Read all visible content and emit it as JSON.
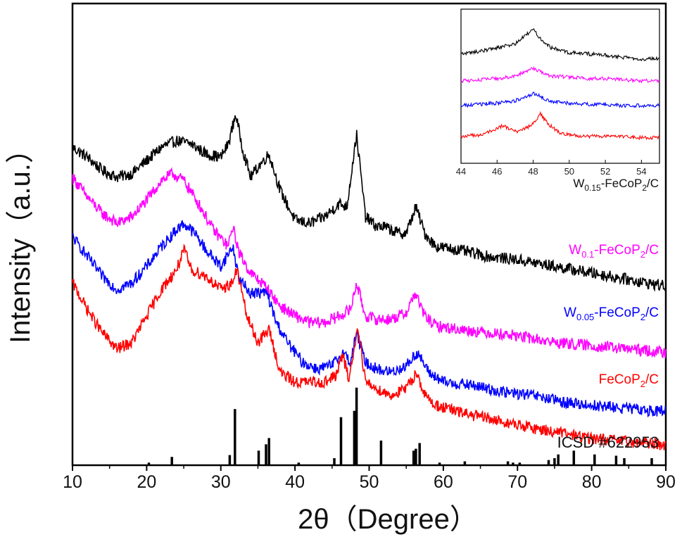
{
  "chart_data": [
    {
      "type": "line",
      "title": "",
      "xlabel": "2θ（Degree）",
      "ylabel": "Intensity（a.u.）",
      "xlim": [
        10,
        90
      ],
      "xticks": [
        10,
        20,
        30,
        40,
        50,
        60,
        70,
        80,
        90
      ],
      "yticks_shown": false,
      "grid": false,
      "series": [
        {
          "name": "W0.15-FeCoP2/C",
          "color": "#000000",
          "label_parts": {
            "base": "W",
            "sub1": "0.15",
            "mid": "-FeCoP",
            "sub2": "2",
            "tail": "/C"
          },
          "labeled_in": "inset",
          "x": [
            10,
            12,
            14,
            16,
            18,
            20,
            22,
            24,
            26,
            28,
            30,
            31,
            32,
            33,
            34,
            35,
            36.5,
            38,
            40,
            42,
            44,
            46,
            47,
            48.3,
            49.5,
            51,
            52,
            54,
            55,
            56.3,
            57.5,
            59,
            62,
            66,
            70,
            75,
            80,
            85,
            90
          ],
          "y": [
            0.81,
            0.78,
            0.74,
            0.72,
            0.73,
            0.77,
            0.81,
            0.83,
            0.82,
            0.79,
            0.78,
            0.82,
            0.91,
            0.8,
            0.72,
            0.75,
            0.79,
            0.68,
            0.59,
            0.58,
            0.6,
            0.64,
            0.63,
            0.85,
            0.6,
            0.57,
            0.57,
            0.55,
            0.55,
            0.63,
            0.55,
            0.51,
            0.5,
            0.48,
            0.47,
            0.45,
            0.43,
            0.41,
            0.39
          ]
        },
        {
          "name": "W0.1-FeCoP2/C",
          "color": "#ff00ff",
          "label_parts": {
            "base": "W",
            "sub1": "0.1",
            "mid": "-FeCoP",
            "sub2": "2",
            "tail": "/C"
          },
          "x": [
            10,
            12,
            14,
            16,
            18,
            20,
            22,
            23.5,
            25,
            27,
            29,
            31,
            31.6,
            32.5,
            34,
            36,
            38,
            40,
            42,
            44,
            46,
            47.5,
            48.3,
            49.5,
            51,
            53,
            55,
            56.2,
            57.5,
            59,
            62,
            66,
            70,
            75,
            80,
            85,
            90
          ],
          "y": [
            0.72,
            0.66,
            0.61,
            0.58,
            0.6,
            0.65,
            0.71,
            0.73,
            0.71,
            0.64,
            0.56,
            0.51,
            0.57,
            0.49,
            0.43,
            0.39,
            0.33,
            0.3,
            0.28,
            0.28,
            0.3,
            0.32,
            0.4,
            0.3,
            0.29,
            0.29,
            0.31,
            0.37,
            0.3,
            0.27,
            0.26,
            0.25,
            0.24,
            0.22,
            0.21,
            0.2,
            0.19
          ]
        },
        {
          "name": "W0.05-FeCoP2/C",
          "color": "#0000ff",
          "label_parts": {
            "base": "W",
            "sub1": "0.05",
            "mid": "-FeCoP",
            "sub2": "2",
            "tail": "/C"
          },
          "x": [
            10,
            12,
            14,
            16,
            18,
            20,
            22,
            24,
            25,
            26.5,
            28,
            30,
            31.6,
            32.5,
            34,
            36.2,
            37.5,
            39,
            41,
            43,
            45,
            46.5,
            47.5,
            48.3,
            49.5,
            51,
            53,
            55,
            56.5,
            58,
            60,
            64,
            68,
            72,
            76,
            80,
            85,
            90
          ],
          "y": [
            0.54,
            0.48,
            0.42,
            0.38,
            0.4,
            0.45,
            0.51,
            0.56,
            0.58,
            0.55,
            0.5,
            0.45,
            0.51,
            0.41,
            0.37,
            0.37,
            0.28,
            0.22,
            0.16,
            0.14,
            0.15,
            0.19,
            0.16,
            0.25,
            0.16,
            0.14,
            0.13,
            0.15,
            0.19,
            0.13,
            0.1,
            0.09,
            0.07,
            0.06,
            0.04,
            0.03,
            0.02,
            0.01
          ]
        },
        {
          "name": "FeCoP2/C",
          "color": "#ff0000",
          "label_parts": {
            "base": "FeCoP",
            "sub1": "2",
            "mid": "/C",
            "sub2": "",
            "tail": ""
          },
          "x": [
            10,
            12,
            14,
            16,
            18,
            20,
            22,
            24,
            25.1,
            26,
            28,
            30,
            31.5,
            32.2,
            33.5,
            35,
            36.5,
            38,
            40,
            42,
            44,
            45.5,
            46.4,
            47.3,
            48.5,
            49.5,
            51,
            53,
            55,
            56.4,
            57.5,
            59,
            62,
            66,
            70,
            75,
            80,
            85,
            90
          ],
          "y": [
            0.4,
            0.32,
            0.25,
            0.2,
            0.22,
            0.3,
            0.38,
            0.44,
            0.5,
            0.44,
            0.42,
            0.38,
            0.4,
            0.44,
            0.3,
            0.22,
            0.26,
            0.13,
            0.1,
            0.1,
            0.1,
            0.12,
            0.18,
            0.11,
            0.27,
            0.1,
            0.08,
            0.06,
            0.08,
            0.13,
            0.06,
            0.03,
            0.01,
            -0.01,
            -0.03,
            -0.05,
            -0.07,
            -0.08,
            -0.09
          ]
        }
      ]
    },
    {
      "type": "bar",
      "subtype": "reference-stick-pattern",
      "name": "ICSD #622953",
      "color": "#000000",
      "x": [
        20.3,
        23.4,
        31.2,
        31.9,
        35.1,
        36.1,
        36.5,
        40.5,
        45.3,
        46.2,
        48.0,
        48.3,
        51.6,
        56.0,
        56.3,
        56.8,
        59.5,
        62.9,
        68.7,
        69.4,
        70.3,
        74.2,
        75.0,
        75.5,
        77.6,
        80.4,
        83.3,
        84.4,
        88.1
      ],
      "values": [
        3,
        12,
        15,
        88,
        22,
        32,
        42,
        3,
        10,
        75,
        85,
        122,
        38,
        22,
        25,
        34,
        3,
        5,
        5,
        3,
        3,
        7,
        10,
        16,
        22,
        16,
        14,
        10,
        10
      ],
      "ylim": [
        0,
        125
      ]
    },
    {
      "type": "line",
      "subtype": "inset",
      "xlim": [
        44,
        55
      ],
      "xticks": [
        44,
        46,
        48,
        50,
        52,
        54
      ],
      "label": "W0.15-FeCoP2/C",
      "series": [
        {
          "color": "#000000",
          "x": [
            44,
            45,
            46,
            47,
            47.5,
            48,
            48.5,
            49,
            50,
            51,
            52,
            53,
            54,
            55
          ],
          "y": [
            0.82,
            0.84,
            0.87,
            0.9,
            0.96,
            1.02,
            0.93,
            0.87,
            0.83,
            0.82,
            0.81,
            0.79,
            0.78,
            0.78
          ]
        },
        {
          "color": "#ff00ff",
          "x": [
            44,
            45,
            46,
            47,
            47.5,
            48,
            48.5,
            49,
            50,
            51,
            52,
            53,
            54,
            55
          ],
          "y": [
            0.6,
            0.61,
            0.62,
            0.64,
            0.67,
            0.7,
            0.67,
            0.64,
            0.63,
            0.62,
            0.62,
            0.61,
            0.6,
            0.6
          ]
        },
        {
          "color": "#0000ff",
          "x": [
            44,
            45,
            46,
            47,
            47.5,
            48.1,
            48.6,
            49,
            50,
            51,
            52,
            53,
            54,
            55
          ],
          "y": [
            0.4,
            0.41,
            0.42,
            0.44,
            0.47,
            0.5,
            0.46,
            0.43,
            0.42,
            0.41,
            0.41,
            0.4,
            0.4,
            0.4
          ]
        },
        {
          "color": "#ff0000",
          "x": [
            44,
            45,
            46,
            46.3,
            46.8,
            47.3,
            48,
            48.4,
            48.9,
            49.5,
            50,
            51,
            52,
            53,
            54,
            55
          ],
          "y": [
            0.15,
            0.16,
            0.21,
            0.24,
            0.2,
            0.19,
            0.25,
            0.33,
            0.24,
            0.18,
            0.16,
            0.15,
            0.15,
            0.15,
            0.14,
            0.14
          ]
        }
      ]
    }
  ]
}
